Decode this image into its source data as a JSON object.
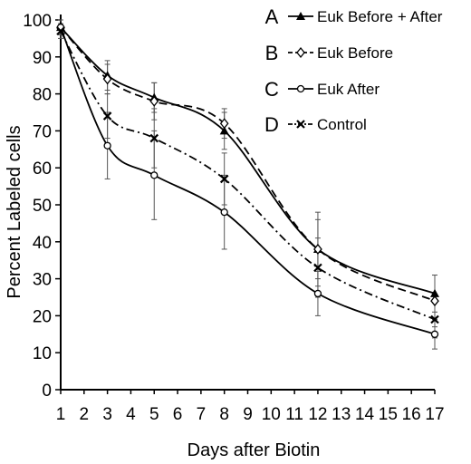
{
  "chart_data": {
    "type": "line",
    "xlabel": "Days after Biotin",
    "ylabel": "Percent Labeled cells",
    "xlim": [
      1,
      17
    ],
    "ylim": [
      0,
      100
    ],
    "xticks": [
      "1",
      "2",
      "3",
      "4",
      "5",
      "6",
      "7",
      "8",
      "9",
      "10",
      "11",
      "12",
      "13",
      "14",
      "15",
      "16",
      "17"
    ],
    "yticks": [
      "0",
      "10",
      "20",
      "30",
      "40",
      "50",
      "60",
      "70",
      "80",
      "90",
      "100"
    ],
    "grid": false,
    "legend_position": "top-right",
    "series": [
      {
        "letter": "A",
        "name": "Euk Before + After",
        "marker": "triangle",
        "line_style": "solid",
        "x": [
          1,
          3,
          5,
          8,
          12,
          17
        ],
        "y": [
          98,
          85,
          79,
          70,
          38,
          26
        ],
        "err": [
          2,
          4,
          4,
          5,
          8,
          5
        ]
      },
      {
        "letter": "B",
        "name": "Euk Before",
        "marker": "diamond",
        "line_style": "dashed",
        "x": [
          1,
          3,
          5,
          8,
          12,
          17
        ],
        "y": [
          98,
          84,
          78,
          72,
          38,
          24
        ],
        "err": [
          2,
          4,
          5,
          4,
          10,
          7
        ]
      },
      {
        "letter": "C",
        "name": "Euk After",
        "marker": "circle",
        "line_style": "solid",
        "x": [
          1,
          3,
          5,
          8,
          12,
          17
        ],
        "y": [
          98,
          66,
          58,
          48,
          26,
          15
        ],
        "err": [
          2,
          9,
          12,
          10,
          6,
          4
        ]
      },
      {
        "letter": "D",
        "name": "Control",
        "marker": "x",
        "line_style": "dashdot",
        "x": [
          1,
          3,
          5,
          8,
          12,
          17
        ],
        "y": [
          97,
          74,
          68,
          57,
          33,
          19
        ],
        "err": [
          2,
          6,
          8,
          7,
          8,
          5
        ]
      }
    ]
  }
}
